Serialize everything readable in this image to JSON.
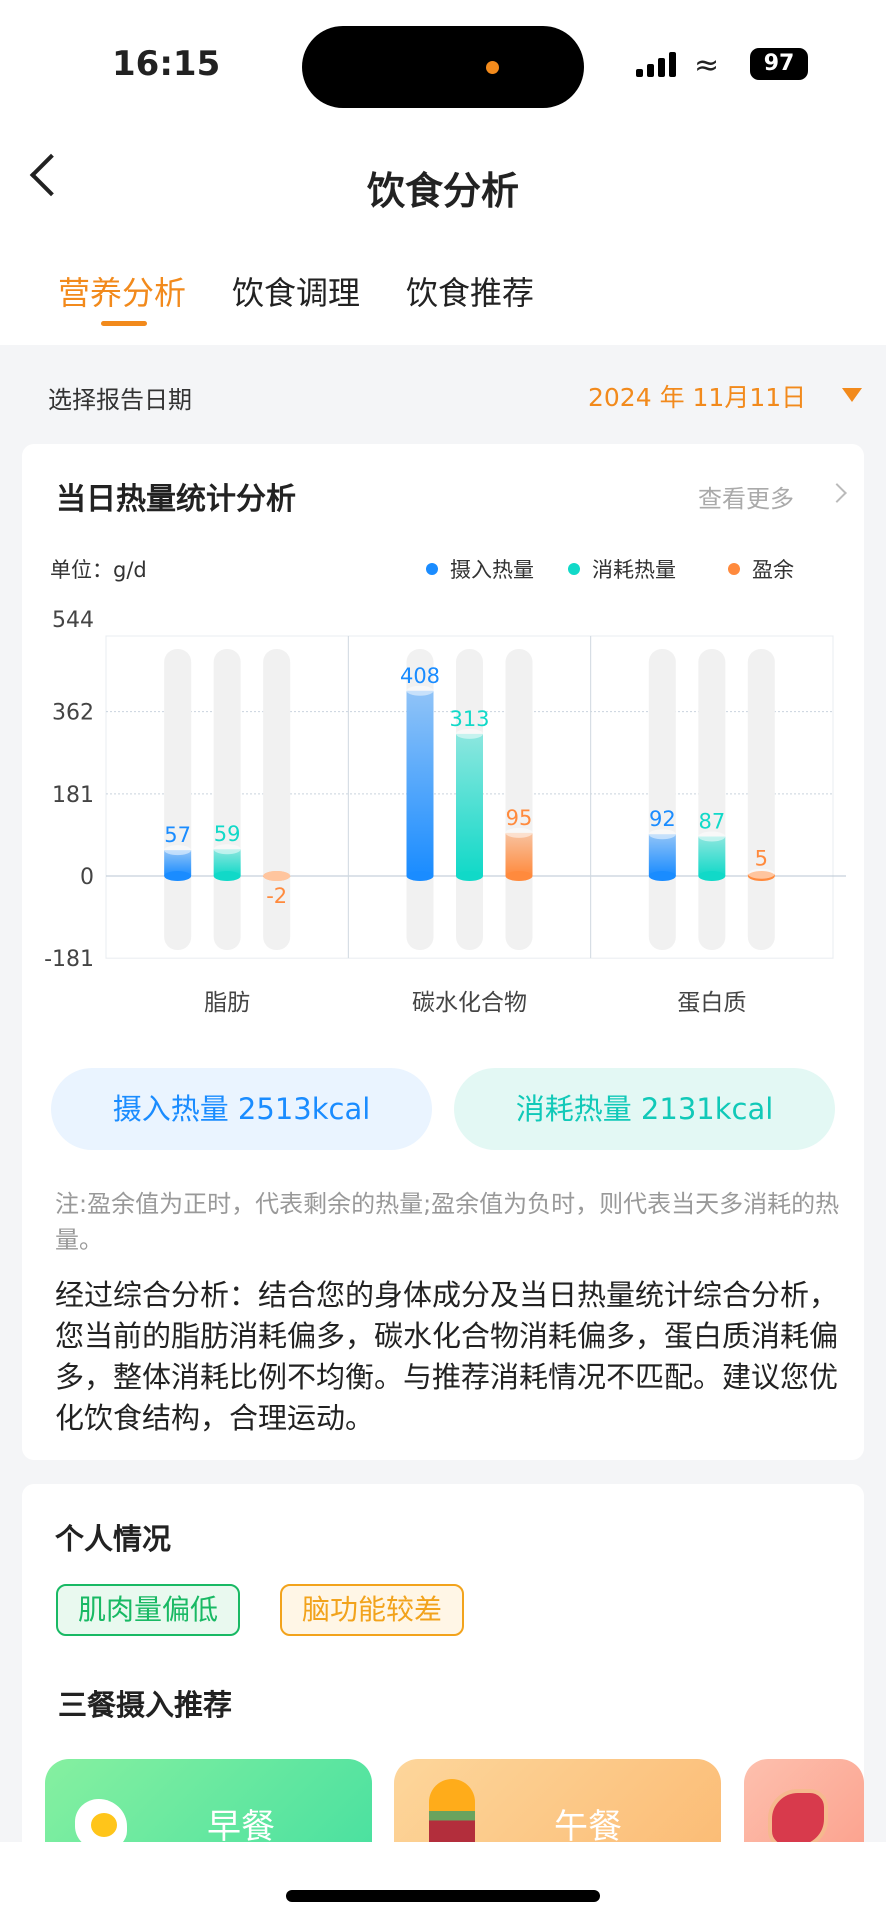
{
  "status": {
    "time": "16:15",
    "battery": "97"
  },
  "header": {
    "title": "饮食分析"
  },
  "tabs": [
    {
      "label": "营养分析",
      "active": true
    },
    {
      "label": "饮食调理"
    },
    {
      "label": "饮食推荐"
    }
  ],
  "date_row": {
    "label": "选择报告日期",
    "value": "2024 年 11月11日"
  },
  "heat_card": {
    "title": "当日热量统计分析",
    "more": "查看更多",
    "unit": "单位：g/d",
    "legend": [
      {
        "label": "摄入热量",
        "color": "#1a8cff"
      },
      {
        "label": "消耗热量",
        "color": "#11d9c8"
      },
      {
        "label": "盈余",
        "color": "#ff8a3d"
      }
    ],
    "intake_pill": "摄入热量 2513kcal",
    "burn_pill": "消耗热量 2131kcal",
    "note": "注:盈余值为正时，代表剩余的热量;盈余值为负时，则代表当天多消耗的热量。",
    "analysis": "经过综合分析：结合您的身体成分及当日热量统计综合分析，您当前的脂肪消耗偏多，碳水化合物消耗偏多，蛋白质消耗偏多，整体消耗比例不均衡。与推荐消耗情况不匹配。建议您优化饮食结构，合理运动。"
  },
  "chart_data": {
    "type": "bar",
    "categories": [
      "脂肪",
      "碳水化合物",
      "蛋白质"
    ],
    "series": [
      {
        "name": "摄入热量",
        "values": [
          57,
          408,
          92
        ],
        "color": "#1a8cff"
      },
      {
        "name": "消耗热量",
        "values": [
          59,
          313,
          87
        ],
        "color": "#11d9c8"
      },
      {
        "name": "盈余",
        "values": [
          -2,
          95,
          5
        ],
        "color": "#ff8a3d"
      }
    ],
    "yticks": [
      544,
      362,
      181,
      0,
      -181
    ],
    "ylim": [
      -181,
      544
    ],
    "ylabel": "单位：g/d",
    "grid": true,
    "legend": "top-right"
  },
  "personal": {
    "title": "个人情况",
    "tags": [
      {
        "label": "肌肉量偏低",
        "color": "#19b964"
      },
      {
        "label": "脑功能较差",
        "color": "#f2a31c"
      }
    ],
    "meals_title": "三餐摄入推荐",
    "meals": [
      {
        "label": "早餐",
        "icon": "fried-egg-icon"
      },
      {
        "label": "午餐",
        "icon": "burger-icon"
      },
      {
        "label": "",
        "icon": "steak-icon"
      }
    ]
  }
}
